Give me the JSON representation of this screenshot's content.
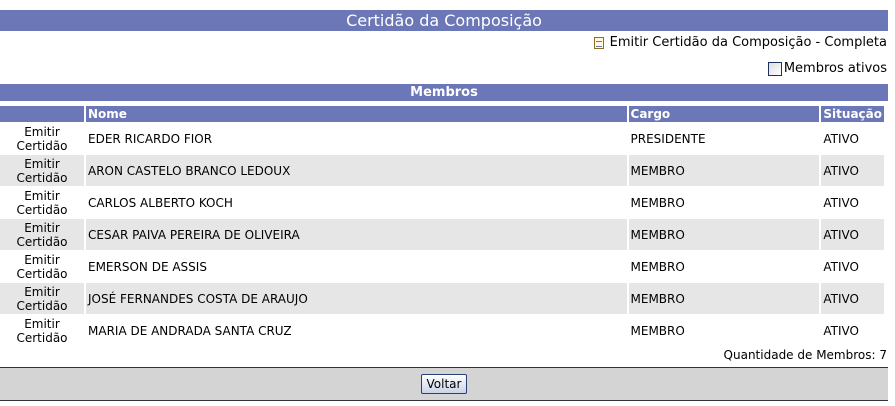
{
  "title": "Certidão da Composição",
  "emit_link": "Emitir Certidão da Composição - Completa",
  "checkbox_label": "Membros ativos",
  "section": "Membros",
  "columns": [
    "",
    "Nome",
    "Cargo",
    "Situação"
  ],
  "rows": [
    {
      "acao": "Emitir Certidão",
      "nome": "EDER RICARDO FIOR",
      "cargo": "PRESIDENTE",
      "situacao": "ATIVO"
    },
    {
      "acao": "Emitir Certidão",
      "nome": "ARON CASTELO BRANCO LEDOUX",
      "cargo": "MEMBRO",
      "situacao": "ATIVO"
    },
    {
      "acao": "Emitir Certidão",
      "nome": "CARLOS ALBERTO KOCH",
      "cargo": "MEMBRO",
      "situacao": "ATIVO"
    },
    {
      "acao": "Emitir Certidão",
      "nome": "CESAR PAIVA PEREIRA DE OLIVEIRA",
      "cargo": "MEMBRO",
      "situacao": "ATIVO"
    },
    {
      "acao": "Emitir Certidão",
      "nome": "EMERSON DE ASSIS",
      "cargo": "MEMBRO",
      "situacao": "ATIVO"
    },
    {
      "acao": "Emitir Certidão",
      "nome": "JOSÉ FERNANDES COSTA DE ARAUJO",
      "cargo": "MEMBRO",
      "situacao": "ATIVO"
    },
    {
      "acao": "Emitir Certidão",
      "nome": "MARIA DE ANDRADA SANTA CRUZ",
      "cargo": "MEMBRO",
      "situacao": "ATIVO"
    }
  ],
  "quantidade": "Quantidade de Membros: 7",
  "voltar": "Voltar",
  "colors": {
    "header": "#6b77b6",
    "alt_row": "#e6e6e6"
  }
}
